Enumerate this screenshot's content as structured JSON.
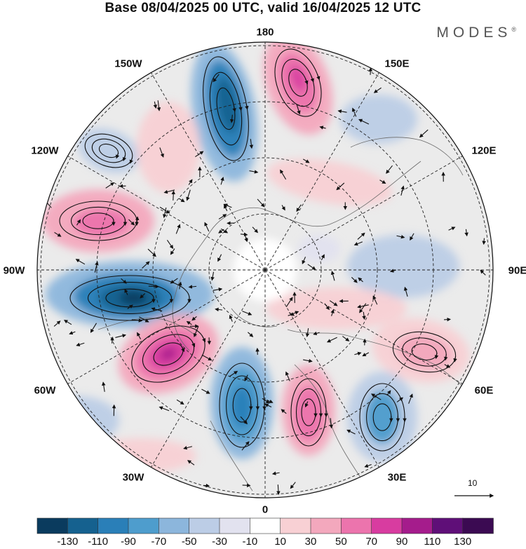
{
  "title": "Base 08/04/2025 00 UTC, valid 16/04/2025 12 UTC",
  "logo": "MODES",
  "logo_mark": "®",
  "longitude_labels": [
    "180",
    "150E",
    "120E",
    "90E",
    "60E",
    "30E",
    "0",
    "30W",
    "60W",
    "90W",
    "120W",
    "150W"
  ],
  "vector_reference": "10",
  "colorbar": {
    "labels": [
      "-130",
      "-110",
      "-90",
      "-70",
      "-50",
      "-30",
      "-10",
      "10",
      "30",
      "50",
      "70",
      "90",
      "110",
      "130"
    ],
    "colors": [
      "#0a3b5e",
      "#15618f",
      "#2a7fb8",
      "#4e9dcd",
      "#8cb6dc",
      "#bccde6",
      "#e2e2ef",
      "#ffffff",
      "#f8d0d4",
      "#f3a8bd",
      "#ec74ad",
      "#d83ca0",
      "#a51c8c",
      "#5f0f78",
      "#3b0a52"
    ]
  },
  "map_style": {
    "ocean_color": "#efefef",
    "land_outline_color": "#666666",
    "grid_color": "#222222"
  }
}
